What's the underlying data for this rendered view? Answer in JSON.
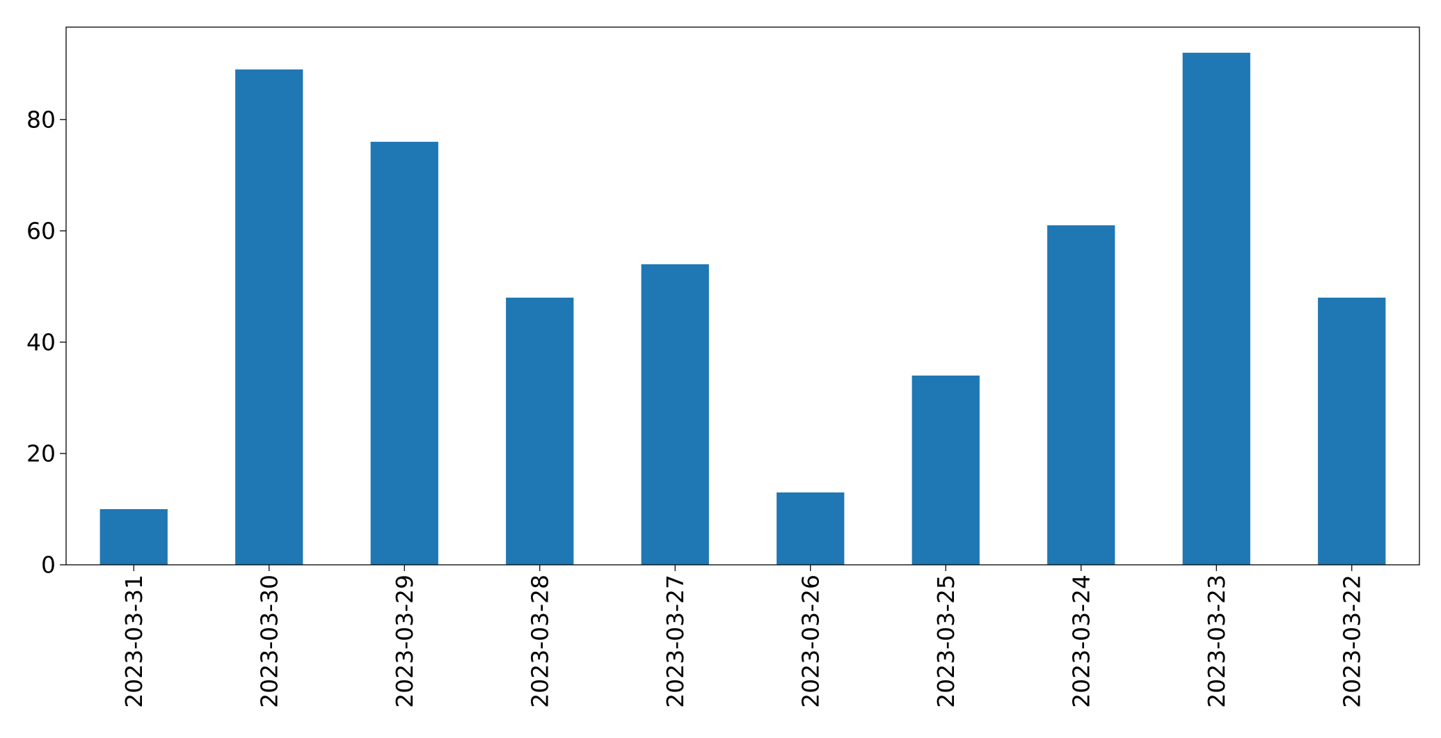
{
  "chart_data": {
    "type": "bar",
    "categories": [
      "2023-03-31",
      "2023-03-30",
      "2023-03-29",
      "2023-03-28",
      "2023-03-27",
      "2023-03-26",
      "2023-03-25",
      "2023-03-24",
      "2023-03-23",
      "2023-03-22"
    ],
    "values": [
      10,
      89,
      76,
      48,
      54,
      13,
      34,
      61,
      92,
      48
    ],
    "title": "",
    "xlabel": "",
    "ylabel": "",
    "ylim": [
      0,
      96.6
    ],
    "yticks": [
      0,
      20,
      40,
      60,
      80
    ],
    "grid": false,
    "legend": "none",
    "bar_color": "#1f77b4"
  }
}
